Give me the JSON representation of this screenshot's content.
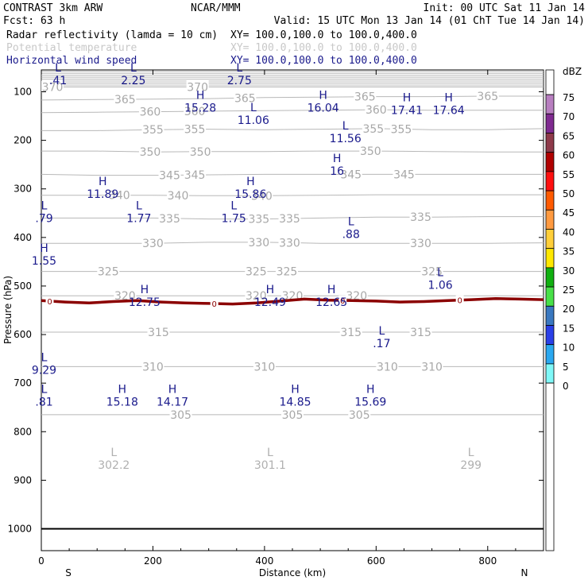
{
  "header": {
    "title_left": "CONTRAST  3km ARW",
    "title_center": "NCAR/MMM",
    "init": "Init: 00 UTC Sat 11 Jan 14",
    "fcst": "Fcst:    63 h",
    "valid": "Valid: 15 UTC Mon 13 Jan 14 (01 ChT Tue 14 Jan 14)",
    "fields": [
      {
        "name": "Radar reflectivity (lamda = 10 cm)",
        "xy": "XY= 100.0,100.0 to 100.0,400.0",
        "color": "#000000"
      },
      {
        "name": "Potential temperature",
        "xy": "XY= 100.0,100.0 to 100.0,400.0",
        "color": "#c8c8c8"
      },
      {
        "name": "Horizontal wind speed",
        "xy": "XY= 100.0,100.0 to 100.0,400.0",
        "color": "#1a1a8c"
      }
    ]
  },
  "chart_data": {
    "type": "cross-section",
    "xlabel": "Distance (km)",
    "ylabel": "Pressure (hPa)",
    "xlim": [
      0,
      900
    ],
    "ylim": [
      1045,
      55
    ],
    "xticks": [
      "0",
      "200",
      "400",
      "600",
      "800"
    ],
    "xtick_values": [
      0,
      200,
      400,
      600,
      800
    ],
    "yticks": [
      "100",
      "200",
      "300",
      "400",
      "500",
      "600",
      "700",
      "800",
      "900",
      "1000"
    ],
    "ytick_values": [
      100,
      200,
      300,
      400,
      500,
      600,
      700,
      800,
      900,
      1000
    ],
    "end_labels": {
      "left": "S",
      "right": "N"
    },
    "colorbar": {
      "unit": "dBZ",
      "levels": [
        "75",
        "70",
        "65",
        "60",
        "55",
        "50",
        "45",
        "40",
        "35",
        "30",
        "25",
        "20",
        "15",
        "10",
        "5",
        "0"
      ],
      "colors": [
        "#ffffff",
        "#b87fc0",
        "#7f2a90",
        "#8e3a4a",
        "#b00000",
        "#ff1010",
        "#ff5a00",
        "#ff9a40",
        "#ffcf3a",
        "#ffe800",
        "#10b010",
        "#48e048",
        "#3a78c0",
        "#2a40e8",
        "#2aa8f0",
        "#7ff8f8",
        "#ffffff"
      ]
    },
    "theta_contours": [
      {
        "label": "370",
        "p": [
          90,
          90,
          90,
          90,
          90,
          90,
          90,
          90,
          90,
          90
        ],
        "label_x": [
          20,
          280
        ]
      },
      {
        "label": "365",
        "p": [
          117,
          116,
          115,
          114,
          112,
          111,
          110,
          110,
          109,
          109
        ],
        "label_x": [
          150,
          365,
          580,
          800
        ]
      },
      {
        "label": "360",
        "p": [
          143,
          142,
          141,
          140,
          139,
          138,
          137,
          138,
          138,
          138
        ],
        "label_x": [
          195,
          275,
          600
        ]
      },
      {
        "label": "355",
        "p": [
          180,
          180,
          178,
          177,
          178,
          177,
          176,
          178,
          178,
          176
        ],
        "label_x": [
          200,
          275,
          595,
          645
        ]
      },
      {
        "label": "350",
        "p": [
          222,
          222,
          224,
          223,
          223,
          222,
          222,
          223,
          224,
          224
        ],
        "label_x": [
          195,
          285,
          590
        ]
      },
      {
        "label": "345",
        "p": [
          270,
          272,
          272,
          271,
          270,
          270,
          270,
          270,
          270,
          270
        ],
        "label_x": [
          230,
          275,
          555,
          650
        ]
      },
      {
        "label": "340",
        "p": [
          313,
          313,
          313,
          314,
          314,
          313,
          312,
          312,
          312,
          312
        ],
        "label_x": [
          140,
          245,
          395
        ]
      },
      {
        "label": "335",
        "p": [
          360,
          360,
          360,
          362,
          362,
          360,
          358,
          358,
          357,
          357
        ],
        "label_x": [
          230,
          390,
          445,
          680
        ]
      },
      {
        "label": "330",
        "p": [
          412,
          412,
          412,
          410,
          410,
          412,
          412,
          412,
          412,
          411
        ],
        "label_x": [
          200,
          390,
          445,
          680
        ]
      },
      {
        "label": "325",
        "p": [
          470,
          470,
          470,
          470,
          470,
          470,
          470,
          470,
          470,
          470
        ],
        "label_x": [
          120,
          385,
          440,
          700
        ]
      },
      {
        "label": "320",
        "p": [
          520,
          520,
          520,
          520,
          520,
          520,
          520,
          520,
          520,
          520
        ],
        "label_x": [
          150,
          385,
          450,
          565
        ]
      },
      {
        "label": "315",
        "p": [
          595,
          595,
          595,
          595,
          595,
          595,
          595,
          595,
          595,
          595
        ],
        "label_x": [
          210,
          555,
          680
        ]
      },
      {
        "label": "310",
        "p": [
          666,
          666,
          666,
          666,
          666,
          666,
          666,
          666,
          666,
          666
        ],
        "label_x": [
          200,
          400,
          620,
          700
        ]
      },
      {
        "label": "305",
        "p": [
          765,
          765,
          765,
          765,
          765,
          765,
          765,
          765,
          765,
          765
        ],
        "label_x": [
          250,
          450,
          570
        ]
      }
    ],
    "freezing_line": {
      "label": "0",
      "label_x": [
        15,
        310,
        540,
        750
      ]
    },
    "wind_extrema": [
      {
        "type": "L",
        "value": ".41",
        "x": 30,
        "p": 58
      },
      {
        "type": "L",
        "value": "2.25",
        "x": 165,
        "p": 58
      },
      {
        "type": "L",
        "value": "2.75",
        "x": 355,
        "p": 58
      },
      {
        "type": "H",
        "value": "15.28",
        "x": 285,
        "p": 115
      },
      {
        "type": "H",
        "value": "16.04",
        "x": 505,
        "p": 115
      },
      {
        "type": "H",
        "value": "17.41",
        "x": 655,
        "p": 120
      },
      {
        "type": "H",
        "value": "17.64",
        "x": 730,
        "p": 120
      },
      {
        "type": "L",
        "value": "11.06",
        "x": 380,
        "p": 140
      },
      {
        "type": "L",
        "value": "11.56",
        "x": 545,
        "p": 178
      },
      {
        "type": "H",
        "value": "16",
        "x": 530,
        "p": 245
      },
      {
        "type": "H",
        "value": "11.89",
        "x": 110,
        "p": 292
      },
      {
        "type": "H",
        "value": "15.86",
        "x": 375,
        "p": 292
      },
      {
        "type": "L",
        "value": ".79",
        "x": 5,
        "p": 342
      },
      {
        "type": "L",
        "value": "1.77",
        "x": 175,
        "p": 342
      },
      {
        "type": "L",
        "value": "1.75",
        "x": 345,
        "p": 342
      },
      {
        "type": "L",
        "value": ".88",
        "x": 555,
        "p": 375
      },
      {
        "type": "H",
        "value": "1.55",
        "x": 5,
        "p": 430
      },
      {
        "type": "L",
        "value": "1.06",
        "x": 715,
        "p": 480
      },
      {
        "type": "H",
        "value": "12.75",
        "x": 185,
        "p": 515
      },
      {
        "type": "H",
        "value": "12.49",
        "x": 410,
        "p": 515
      },
      {
        "type": "H",
        "value": "12.65",
        "x": 520,
        "p": 515
      },
      {
        "type": "L",
        "value": ".17",
        "x": 610,
        "p": 600
      },
      {
        "type": "L",
        "value": "9.29",
        "x": 5,
        "p": 655
      },
      {
        "type": "L",
        "value": ".81",
        "x": 5,
        "p": 720
      },
      {
        "type": "H",
        "value": "15.18",
        "x": 145,
        "p": 720
      },
      {
        "type": "H",
        "value": "14.17",
        "x": 235,
        "p": 720
      },
      {
        "type": "H",
        "value": "14.85",
        "x": 455,
        "p": 720
      },
      {
        "type": "H",
        "value": "15.69",
        "x": 590,
        "p": 720
      }
    ],
    "theta_extrema": [
      {
        "type": "L",
        "value": "302.2",
        "x": 130,
        "p": 870
      },
      {
        "type": "L",
        "value": "301.1",
        "x": 410,
        "p": 870
      },
      {
        "type": "L",
        "value": "299",
        "x": 770,
        "p": 870
      }
    ]
  }
}
